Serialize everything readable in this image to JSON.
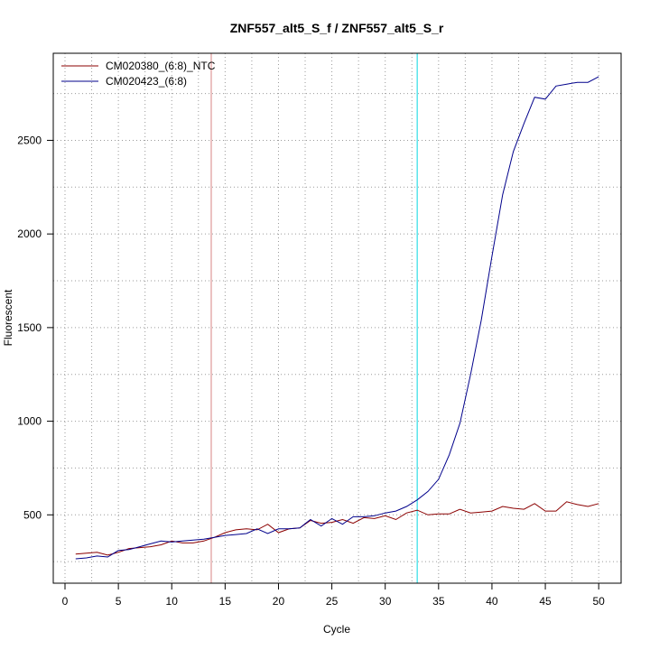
{
  "chart_data": {
    "type": "line",
    "title": "ZNF557_alt5_S_f / ZNF557_alt5_S_r",
    "xlabel": "Cycle",
    "ylabel": "Fluorescent",
    "xlim": [
      -1.1,
      52.1
    ],
    "ylim": [
      135,
      2965
    ],
    "x_ticks": [
      0,
      5,
      10,
      15,
      20,
      25,
      30,
      35,
      40,
      45,
      50
    ],
    "y_ticks": [
      500,
      1000,
      1500,
      2000,
      2500
    ],
    "grid": true,
    "legend_position": "top-left",
    "threshold_lines": [
      {
        "x": 13.7,
        "color": "#e0a0a0"
      },
      {
        "x": 33.0,
        "color": "#40e0e8"
      }
    ],
    "x": [
      1,
      2,
      3,
      4,
      5,
      6,
      7,
      8,
      9,
      10,
      11,
      12,
      13,
      14,
      15,
      16,
      17,
      18,
      19,
      20,
      21,
      22,
      23,
      24,
      25,
      26,
      27,
      28,
      29,
      30,
      31,
      32,
      33,
      34,
      35,
      36,
      37,
      38,
      39,
      40,
      41,
      42,
      43,
      44,
      45,
      46,
      47,
      48,
      49,
      50
    ],
    "series": [
      {
        "name": "CM020380_(6:8)_NTC",
        "color": "#8b0000",
        "values": [
          290,
          295,
          300,
          285,
          300,
          320,
          325,
          330,
          340,
          360,
          350,
          350,
          360,
          380,
          405,
          420,
          425,
          420,
          450,
          405,
          425,
          430,
          470,
          455,
          460,
          475,
          455,
          485,
          480,
          495,
          475,
          510,
          525,
          500,
          505,
          505,
          530,
          510,
          515,
          520,
          545,
          535,
          530,
          560,
          520,
          520,
          570,
          555,
          545,
          560
        ]
      },
      {
        "name": "CM020423_(6:8)",
        "color": "#00008b",
        "values": [
          265,
          270,
          280,
          275,
          310,
          315,
          330,
          345,
          360,
          355,
          360,
          365,
          370,
          380,
          390,
          395,
          400,
          425,
          400,
          425,
          425,
          430,
          475,
          440,
          480,
          450,
          490,
          490,
          495,
          510,
          520,
          545,
          580,
          625,
          690,
          820,
          990,
          1250,
          1540,
          1880,
          2210,
          2440,
          2590,
          2730,
          2720,
          2790,
          2800,
          2810,
          2810,
          2840
        ]
      }
    ]
  }
}
